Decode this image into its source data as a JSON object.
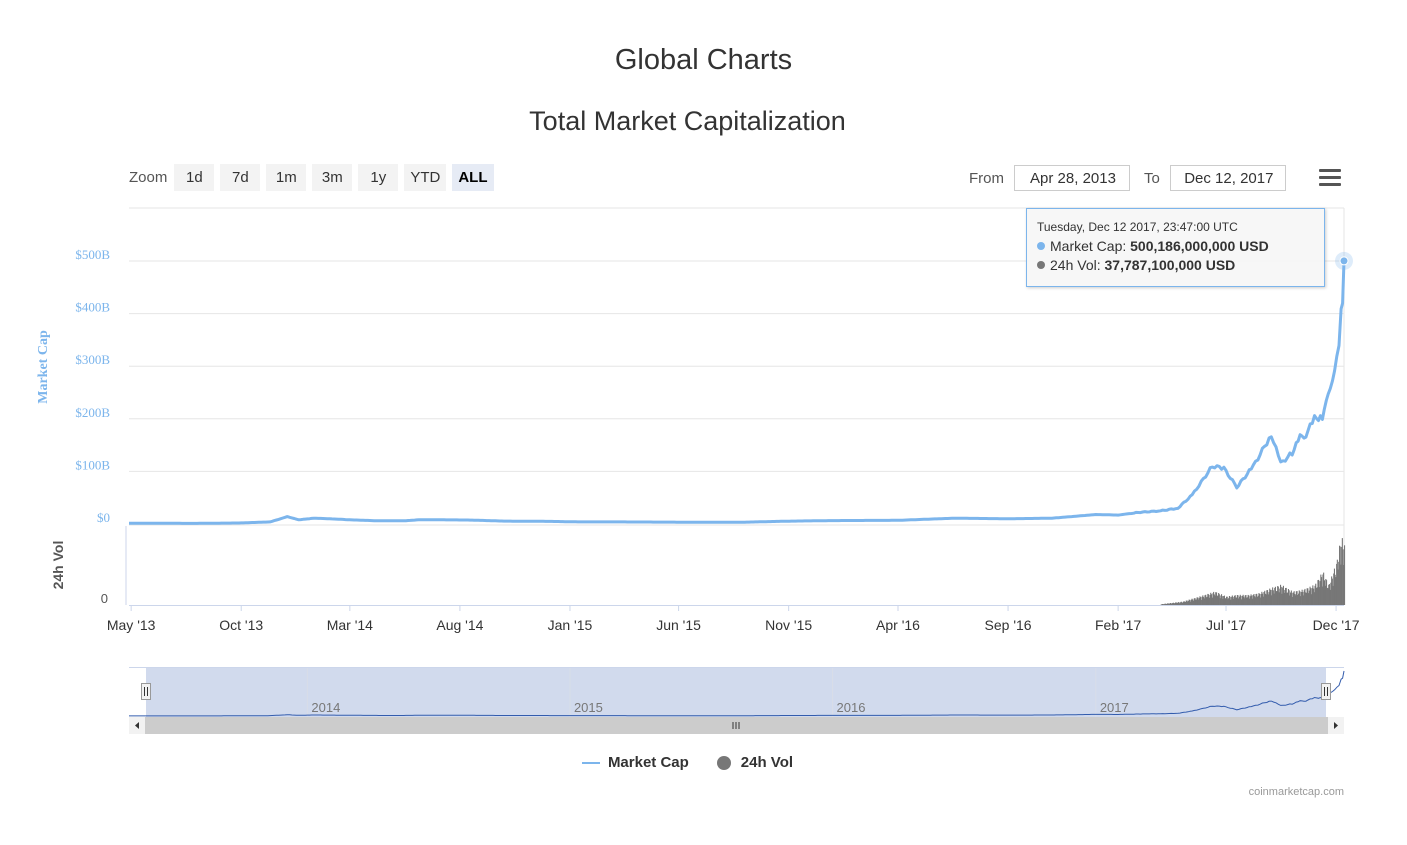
{
  "header": {
    "page_title": "Global Charts",
    "chart_title": "Total Market Capitalization"
  },
  "zoom": {
    "label": "Zoom",
    "buttons": [
      "1d",
      "7d",
      "1m",
      "3m",
      "1y",
      "YTD",
      "ALL"
    ],
    "active": "ALL"
  },
  "range": {
    "from_label": "From",
    "from_value": "Apr 28, 2013",
    "to_label": "To",
    "to_value": "Dec 12, 2017"
  },
  "tooltip": {
    "date": "Tuesday, Dec 12 2017, 23:47:00 UTC",
    "market_cap_label": "Market Cap:",
    "market_cap_value": "500,186,000,000 USD",
    "vol_label": "24h Vol:",
    "vol_value": "37,787,100,000 USD"
  },
  "legend": {
    "market_cap": "Market Cap",
    "vol": "24h Vol"
  },
  "credits": "coinmarketcap.com",
  "colors": {
    "market_cap": "#7cb5ec",
    "volume": "#777777",
    "navigator_mask": "#ccd6eb",
    "navigator_line": "#335cad"
  },
  "chart_data": {
    "type": "line",
    "x_range": [
      "2013-04-28",
      "2017-12-12"
    ],
    "x_ticks": [
      {
        "date": "2013-05-01",
        "label": "May '13"
      },
      {
        "date": "2013-10-01",
        "label": "Oct '13"
      },
      {
        "date": "2014-03-01",
        "label": "Mar '14"
      },
      {
        "date": "2014-08-01",
        "label": "Aug '14"
      },
      {
        "date": "2015-01-01",
        "label": "Jan '15"
      },
      {
        "date": "2015-06-01",
        "label": "Jun '15"
      },
      {
        "date": "2015-11-01",
        "label": "Nov '15"
      },
      {
        "date": "2016-04-01",
        "label": "Apr '16"
      },
      {
        "date": "2016-09-01",
        "label": "Sep '16"
      },
      {
        "date": "2017-02-01",
        "label": "Feb '17"
      },
      {
        "date": "2017-07-01",
        "label": "Jul '17"
      },
      {
        "date": "2017-12-01",
        "label": "Dec '17"
      }
    ],
    "y_axis_market_cap": {
      "title": "Market Cap",
      "ticks": [
        {
          "value": 0,
          "label": "$0"
        },
        {
          "value": 100,
          "label": "$100B"
        },
        {
          "value": 200,
          "label": "$200B"
        },
        {
          "value": 300,
          "label": "$300B"
        },
        {
          "value": 400,
          "label": "$400B"
        },
        {
          "value": 500,
          "label": "$500B"
        }
      ],
      "ylim": [
        0,
        500
      ]
    },
    "y_axis_volume": {
      "title": "24h Vol",
      "ticks": [
        {
          "value": 0,
          "label": "0"
        }
      ],
      "ylim": [
        0,
        45
      ]
    },
    "series": [
      {
        "name": "Market Cap",
        "unit": "billion USD",
        "points": [
          [
            "2013-04-28",
            1.6
          ],
          [
            "2013-06-01",
            1.3
          ],
          [
            "2013-08-01",
            1.2
          ],
          [
            "2013-10-01",
            2.0
          ],
          [
            "2013-11-10",
            4
          ],
          [
            "2013-11-25",
            10
          ],
          [
            "2013-12-04",
            14
          ],
          [
            "2013-12-20",
            8
          ],
          [
            "2014-01-10",
            11
          ],
          [
            "2014-02-01",
            10
          ],
          [
            "2014-03-01",
            8
          ],
          [
            "2014-04-10",
            6
          ],
          [
            "2014-05-15",
            6
          ],
          [
            "2014-06-05",
            8
          ],
          [
            "2014-07-01",
            8
          ],
          [
            "2014-08-15",
            7.5
          ],
          [
            "2014-10-01",
            5.5
          ],
          [
            "2014-12-01",
            5
          ],
          [
            "2015-01-15",
            4
          ],
          [
            "2015-03-01",
            4
          ],
          [
            "2015-06-01",
            3.5
          ],
          [
            "2015-09-01",
            3.5
          ],
          [
            "2015-11-05",
            5.5
          ],
          [
            "2016-01-01",
            6.5
          ],
          [
            "2016-04-01",
            7
          ],
          [
            "2016-06-18",
            11
          ],
          [
            "2016-09-01",
            10
          ],
          [
            "2016-11-01",
            11
          ],
          [
            "2017-01-01",
            18
          ],
          [
            "2017-02-01",
            17
          ],
          [
            "2017-03-01",
            22
          ],
          [
            "2017-04-01",
            25
          ],
          [
            "2017-04-25",
            30
          ],
          [
            "2017-05-15",
            55
          ],
          [
            "2017-06-12",
            110
          ],
          [
            "2017-06-28",
            106
          ],
          [
            "2017-07-16",
            70
          ],
          [
            "2017-08-08",
            110
          ],
          [
            "2017-09-02",
            170
          ],
          [
            "2017-09-15",
            115
          ],
          [
            "2017-10-01",
            135
          ],
          [
            "2017-10-12",
            165
          ],
          [
            "2017-10-20",
            170
          ],
          [
            "2017-11-01",
            200
          ],
          [
            "2017-11-12",
            205
          ],
          [
            "2017-11-20",
            240
          ],
          [
            "2017-11-29",
            300
          ],
          [
            "2017-12-05",
            330
          ],
          [
            "2017-12-08",
            420
          ],
          [
            "2017-12-10",
            410
          ],
          [
            "2017-12-12",
            500.186
          ]
        ]
      },
      {
        "name": "24h Vol",
        "unit": "billion USD",
        "points": [
          [
            "2017-04-01",
            0.5
          ],
          [
            "2017-05-01",
            2
          ],
          [
            "2017-06-01",
            6
          ],
          [
            "2017-06-15",
            8
          ],
          [
            "2017-07-01",
            5
          ],
          [
            "2017-07-15",
            6
          ],
          [
            "2017-08-01",
            6
          ],
          [
            "2017-08-15",
            7
          ],
          [
            "2017-09-01",
            10
          ],
          [
            "2017-09-15",
            12
          ],
          [
            "2017-10-01",
            8
          ],
          [
            "2017-10-15",
            9
          ],
          [
            "2017-11-01",
            12
          ],
          [
            "2017-11-12",
            20
          ],
          [
            "2017-11-20",
            12
          ],
          [
            "2017-12-01",
            25
          ],
          [
            "2017-12-07",
            40
          ],
          [
            "2017-12-12",
            37.787
          ]
        ]
      }
    ],
    "navigator": {
      "year_labels": [
        {
          "date": "2014-01-01",
          "label": "2014"
        },
        {
          "date": "2015-01-01",
          "label": "2015"
        },
        {
          "date": "2016-01-01",
          "label": "2016"
        },
        {
          "date": "2017-01-01",
          "label": "2017"
        }
      ],
      "selected_range": [
        "2013-04-28",
        "2017-12-12"
      ]
    },
    "grid": true
  }
}
